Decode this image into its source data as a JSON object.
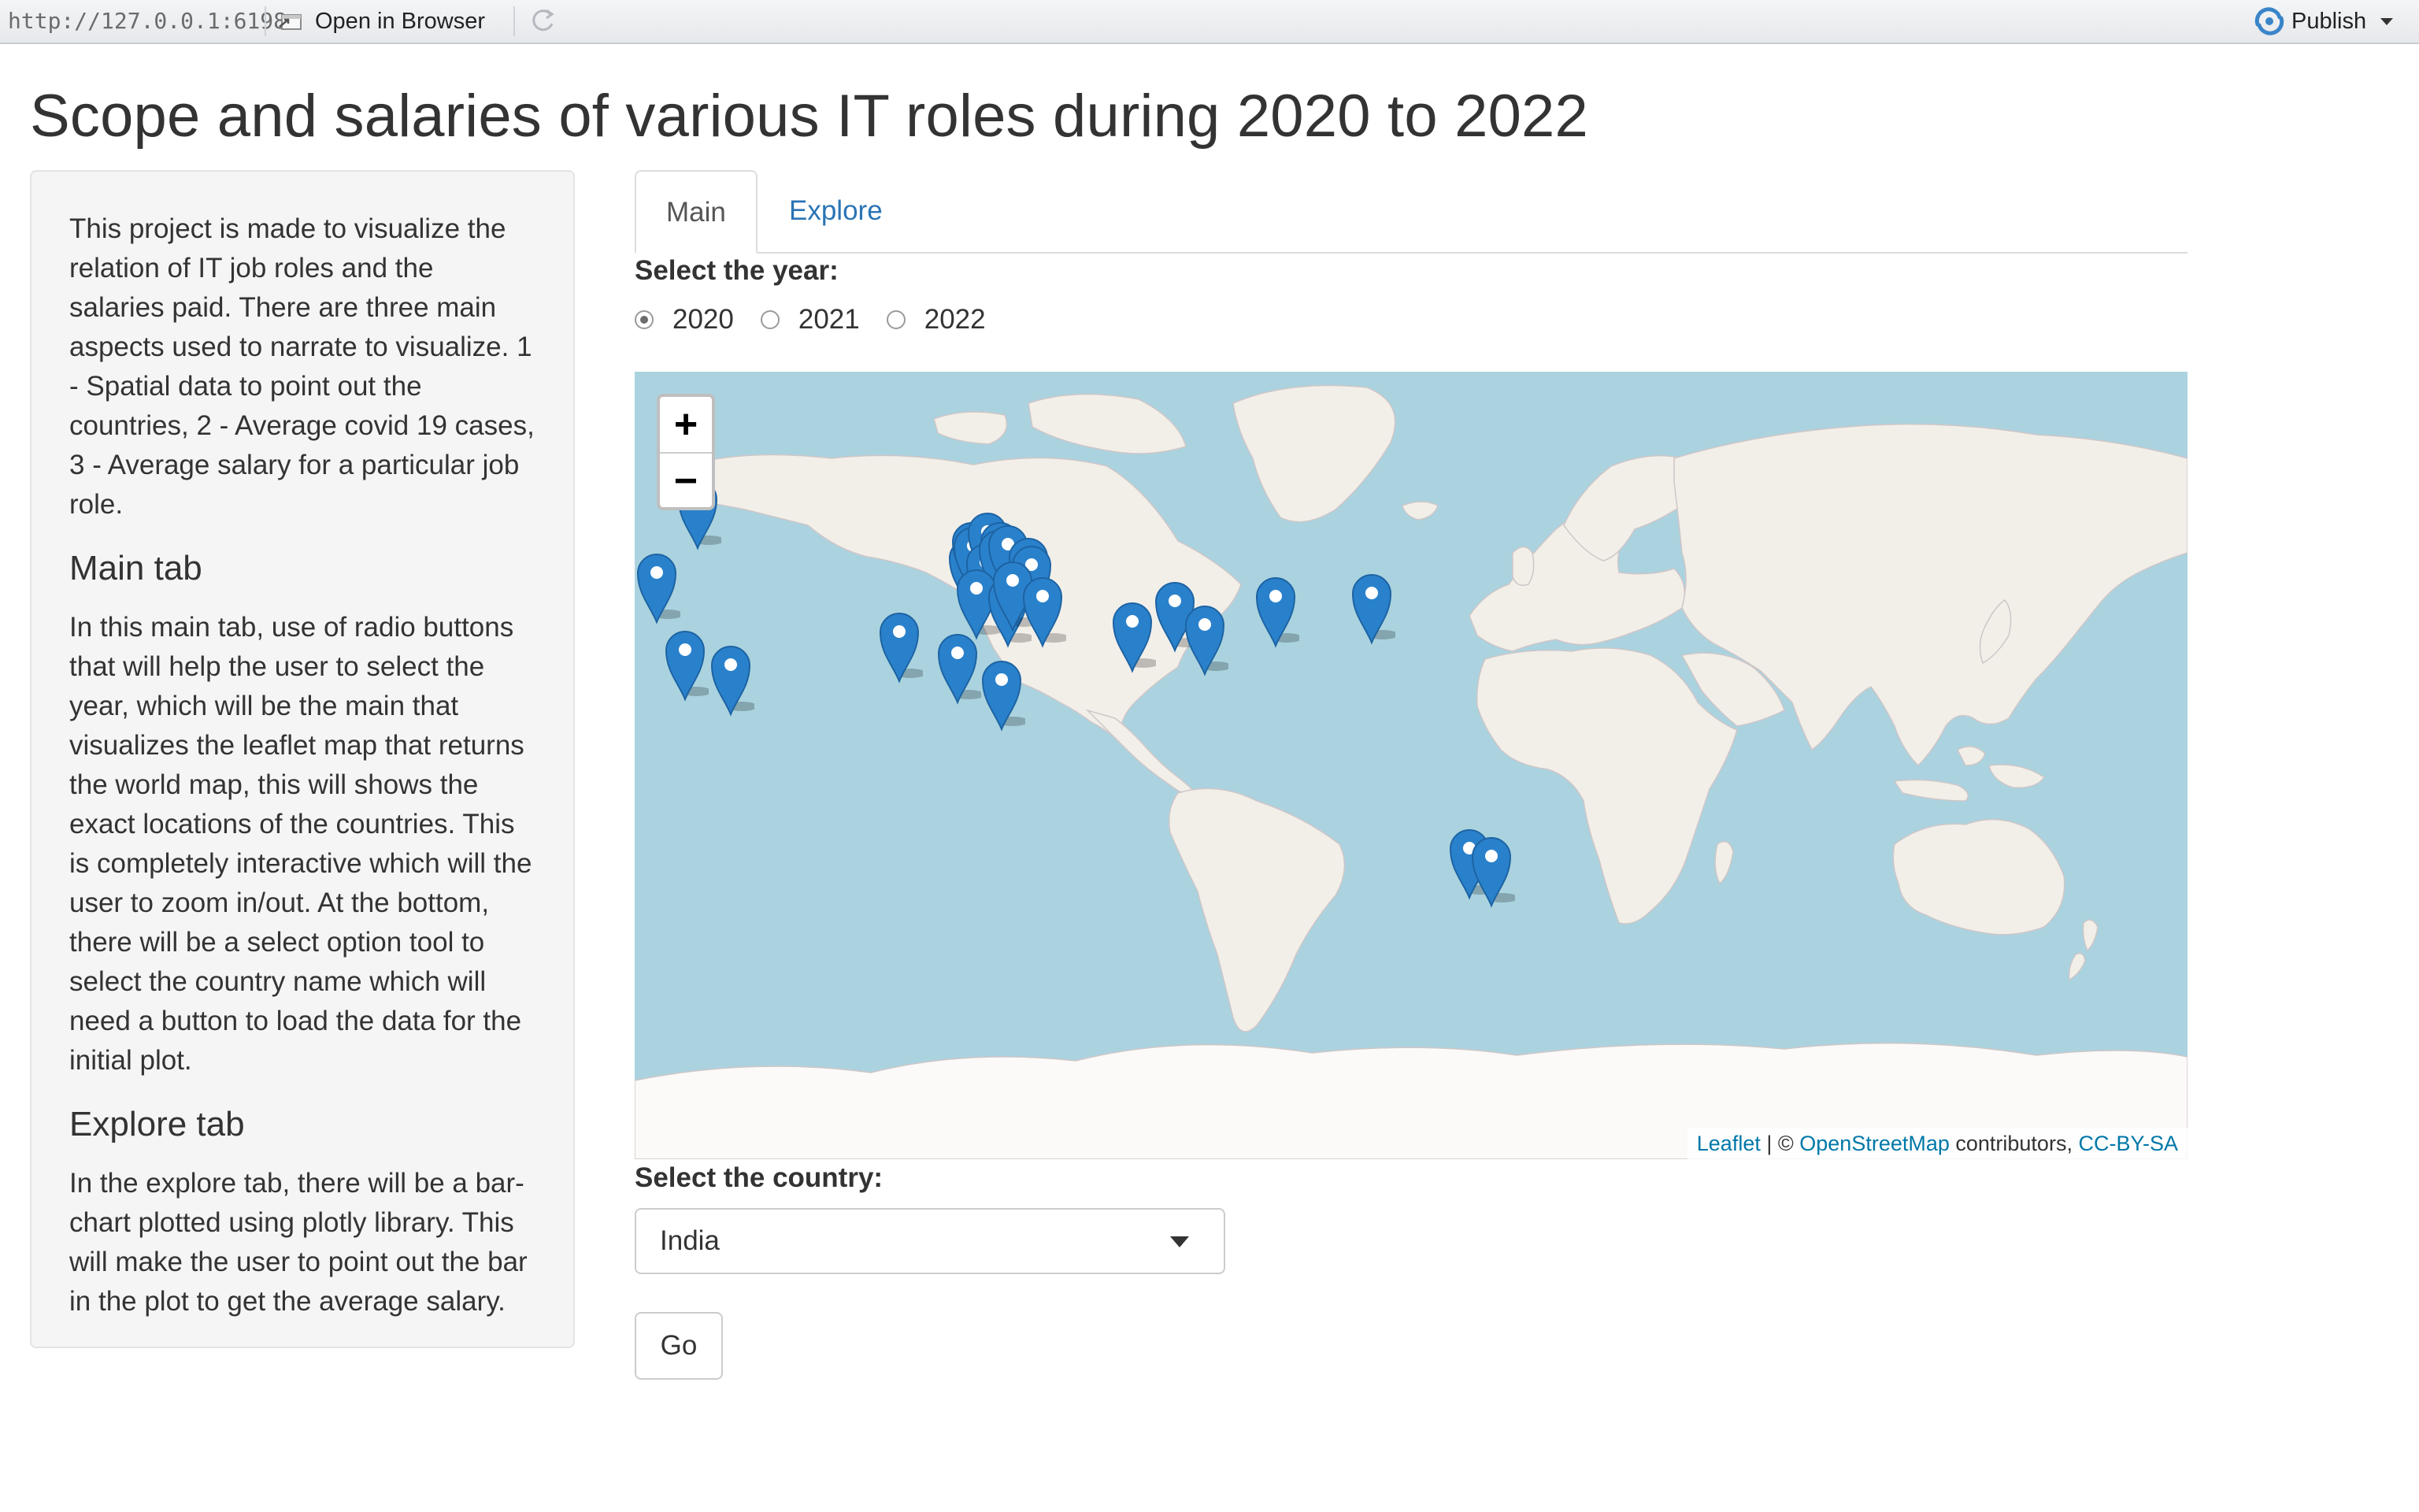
{
  "toolbar": {
    "url": "http://127.0.0.1:6198",
    "open_in_browser": "Open in Browser",
    "publish": "Publish",
    "publish_color": "#3a85c9"
  },
  "page": {
    "title": "Scope and salaries of various IT roles during 2020 to 2022"
  },
  "sidebar": {
    "intro": "This project is made to visualize the relation of IT job roles and the salaries paid. There are three main aspects used to narrate to visualize. 1 - Spatial data to point out the countries, 2 - Average covid 19 cases, 3 - Average salary for a particular job role.",
    "main_heading": "Main tab",
    "main_text": "In this main tab, use of radio buttons that will help the user to select the year, which will be the main that visualizes the leaflet map that returns the world map, this will shows the exact locations of the countries. This is completely interactive which will the user to zoom in/out. At the bottom, there will be a select option tool to select the country name which will need a button to load the data for the initial plot.",
    "explore_heading": "Explore tab",
    "explore_text": "In the explore tab, there will be a bar-chart plotted using plotly library. This will make the user to point out the bar in the plot to get the average salary."
  },
  "tabs": [
    {
      "label": "Main",
      "active": true
    },
    {
      "label": "Explore",
      "active": false
    }
  ],
  "year_selector": {
    "label": "Select the year:",
    "options": [
      "2020",
      "2021",
      "2022"
    ],
    "selected": "2020"
  },
  "map": {
    "zoom_in": "+",
    "zoom_out": "−",
    "attribution": {
      "leaflet": "Leaflet",
      "sep": " | © ",
      "osm": "OpenStreetMap",
      "contributors": " contributors, ",
      "license": "CC-BY-SA"
    },
    "colors": {
      "water": "#aad3df",
      "land": "#f2efe9",
      "ice": "#fbfaf8",
      "marker": "#2a81cb"
    }
  },
  "country_selector": {
    "label": "Select the country:",
    "selected": "India"
  },
  "go_button": "Go"
}
